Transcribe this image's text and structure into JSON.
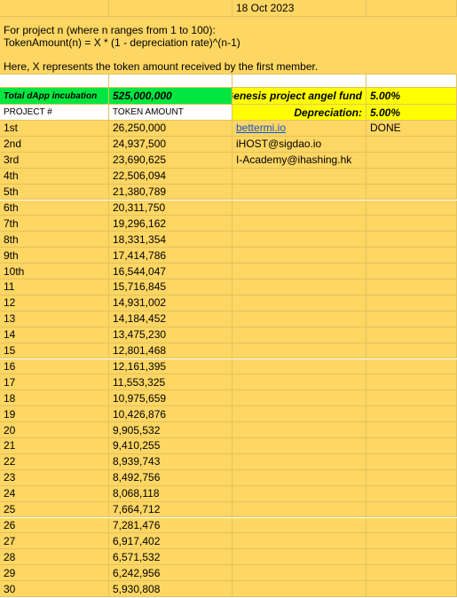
{
  "top": {
    "date": "18 Oct 2023"
  },
  "description": {
    "line1": "For project n (where n ranges from 1 to 100):",
    "line2": "TokenAmount(n) = X * (1 - depreciation rate)^(n-1)",
    "line3": "Here, X represents the token amount received by the first member."
  },
  "summary": {
    "total_label": "Total dApp incubation",
    "total_value": "525,000,000",
    "angel_label": "Genesis project angel fund",
    "angel_value": "5.00%",
    "dep_label": "Depreciation:",
    "dep_value": "5.00%"
  },
  "headers": {
    "project": "PROJECT #",
    "amount": "TOKEN AMOUNT"
  },
  "side": {
    "link": "bettermi.io",
    "status": "DONE",
    "email1": "iHOST@sigdao.io",
    "email2": "I-Academy@ihashing.hk"
  },
  "rows": [
    {
      "project": "1st",
      "amount": "26,250,000"
    },
    {
      "project": "2nd",
      "amount": "24,937,500"
    },
    {
      "project": "3rd",
      "amount": "23,690,625"
    },
    {
      "project": "4th",
      "amount": "22,506,094"
    },
    {
      "project": "5th",
      "amount": "21,380,789"
    },
    {
      "project": "6th",
      "amount": "20,311,750"
    },
    {
      "project": "7th",
      "amount": "19,296,162"
    },
    {
      "project": "8th",
      "amount": "18,331,354"
    },
    {
      "project": "9th",
      "amount": "17,414,786"
    },
    {
      "project": "10th",
      "amount": "16,544,047"
    },
    {
      "project": "11",
      "amount": "15,716,845"
    },
    {
      "project": "12",
      "amount": "14,931,002"
    },
    {
      "project": "13",
      "amount": "14,184,452"
    },
    {
      "project": "14",
      "amount": "13,475,230"
    },
    {
      "project": "15",
      "amount": "12,801,468"
    },
    {
      "project": "16",
      "amount": "12,161,395"
    },
    {
      "project": "17",
      "amount": "11,553,325"
    },
    {
      "project": "18",
      "amount": "10,975,659"
    },
    {
      "project": "19",
      "amount": "10,426,876"
    },
    {
      "project": "20",
      "amount": "9,905,532"
    },
    {
      "project": "21",
      "amount": "9,410,255"
    },
    {
      "project": "22",
      "amount": "8,939,743"
    },
    {
      "project": "23",
      "amount": "8,492,756"
    },
    {
      "project": "24",
      "amount": "8,068,118"
    },
    {
      "project": "25",
      "amount": "7,664,712"
    },
    {
      "project": "26",
      "amount": "7,281,476"
    },
    {
      "project": "27",
      "amount": "6,917,402"
    },
    {
      "project": "28",
      "amount": "6,571,532"
    },
    {
      "project": "29",
      "amount": "6,242,956"
    },
    {
      "project": "30",
      "amount": "5,930,808"
    }
  ]
}
